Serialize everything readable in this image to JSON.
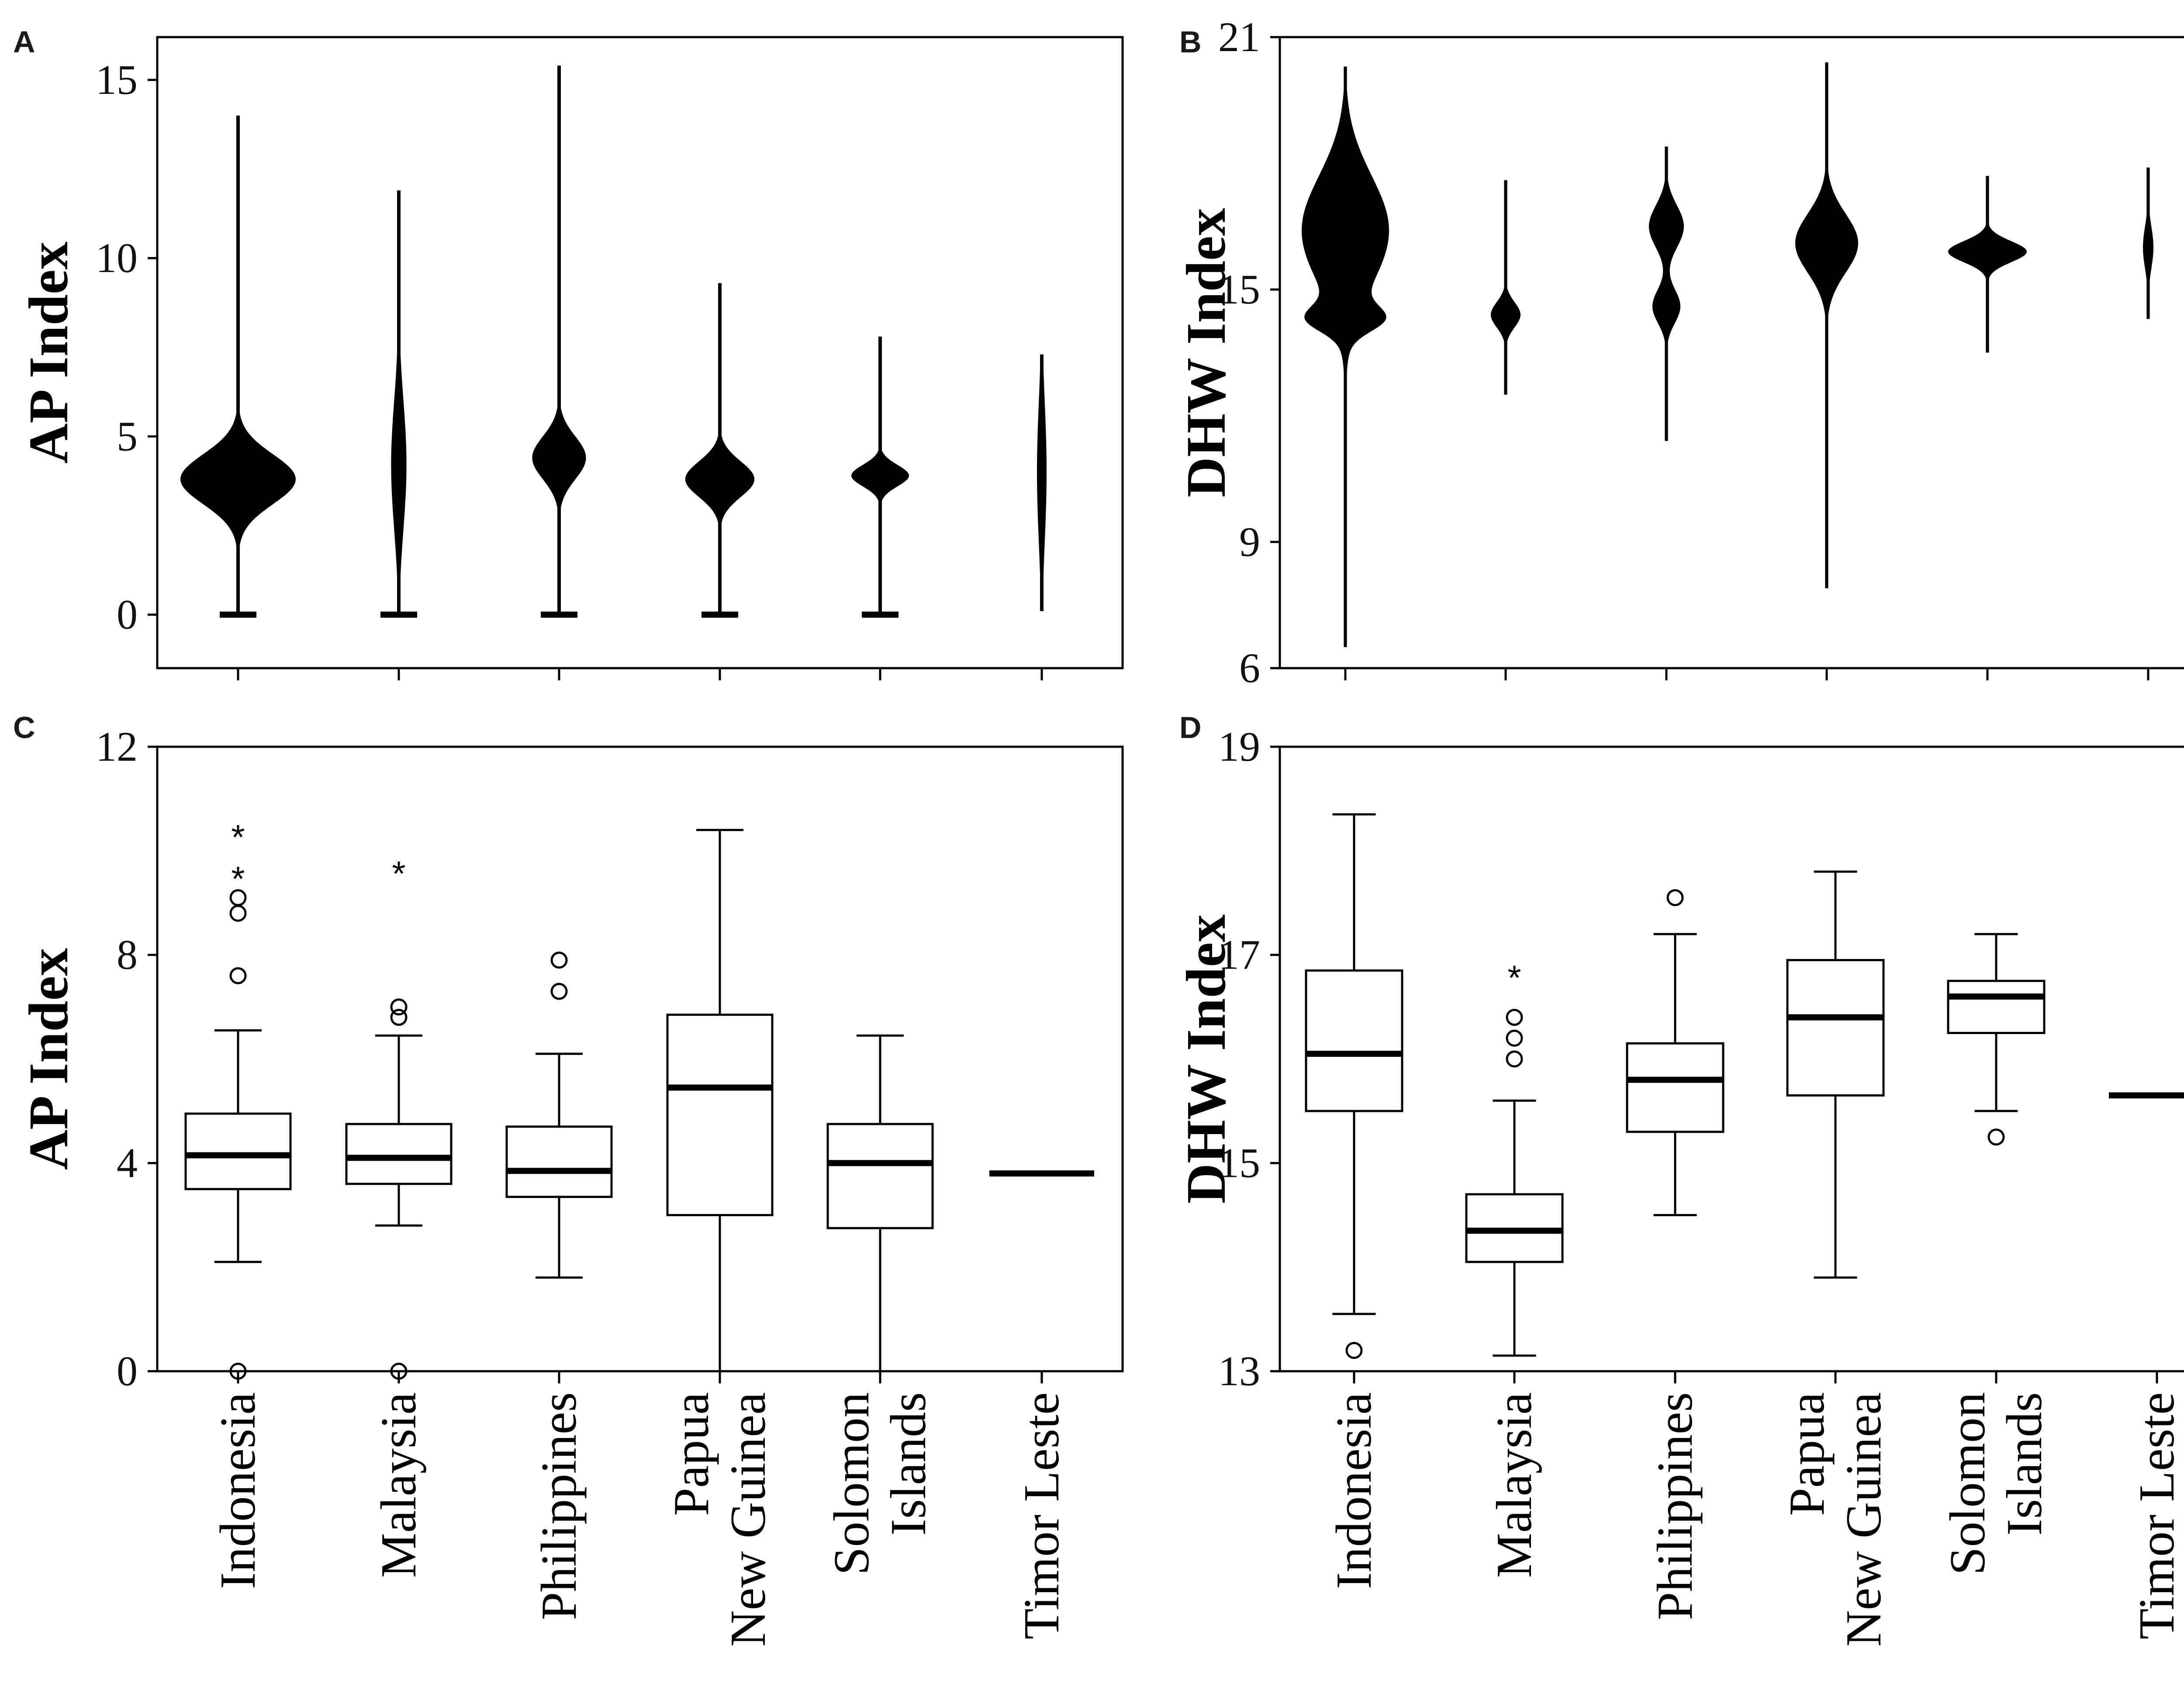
{
  "chart_data": [
    {
      "id": "A",
      "letter": "A",
      "type": "violin",
      "ylabel": "AP Index",
      "ylim": [
        -1.5,
        16.2
      ],
      "yticks": [
        0,
        5,
        10,
        15
      ],
      "ytick_labels": [
        "0",
        "5",
        "10",
        "15"
      ],
      "categories": [
        "Indonesia",
        "Malaysia",
        "Philippines",
        "Papua New Guinea",
        "Solomon Islands",
        "Timor Leste"
      ],
      "groups": [
        {
          "name": "Indonesia",
          "min": 0,
          "max": 14,
          "mode": 3.8,
          "peak_halfwidth": 0.6,
          "spread": 0.7
        },
        {
          "name": "Malaysia",
          "min": 0,
          "max": 11.9,
          "mode": 4.2,
          "peak_halfwidth": 0.08,
          "spread": 1.8
        },
        {
          "name": "Philippines",
          "min": 0,
          "max": 15.4,
          "mode": 4.4,
          "peak_halfwidth": 0.28,
          "spread": 0.6
        },
        {
          "name": "Papua New Guinea",
          "min": 0,
          "max": 9.3,
          "mode": 3.8,
          "peak_halfwidth": 0.36,
          "spread": 0.5
        },
        {
          "name": "Solomon Islands",
          "min": 0,
          "max": 7.8,
          "mode": 3.9,
          "peak_halfwidth": 0.3,
          "spread": 0.3
        },
        {
          "name": "Timor Leste",
          "min": 0.1,
          "max": 7.3,
          "mode": 4.0,
          "peak_halfwidth": 0.05,
          "spread": 2.0
        }
      ]
    },
    {
      "id": "B",
      "letter": "B",
      "type": "violin",
      "ylabel": "DHW Index",
      "ylim": [
        6,
        21
      ],
      "yticks": [
        6,
        9,
        15,
        21
      ],
      "ytick_labels": [
        "6",
        "9",
        "15",
        "21"
      ],
      "categories": [
        "Indonesia",
        "Malaysia",
        "Philippines",
        "Papua New Guinea",
        "Solomon Islands",
        "Timor Leste"
      ],
      "groups": [
        {
          "name": "Indonesia",
          "min": 6.5,
          "max": 20.3,
          "modes": [
            [
              16.4,
              0.5,
              1.3
            ],
            [
              14.3,
              0.33,
              0.3
            ]
          ]
        },
        {
          "name": "Malaysia",
          "min": 12.5,
          "max": 17.6,
          "modes": [
            [
              14.4,
              0.17,
              0.3
            ]
          ]
        },
        {
          "name": "Philippines",
          "min": 11.4,
          "max": 18.4,
          "modes": [
            [
              16.5,
              0.2,
              0.5
            ],
            [
              14.6,
              0.16,
              0.4
            ]
          ]
        },
        {
          "name": "Papua New Guinea",
          "min": 7.9,
          "max": 20.4,
          "modes": [
            [
              16.1,
              0.36,
              0.7
            ]
          ]
        },
        {
          "name": "Solomon Islands",
          "min": 13.5,
          "max": 17.7,
          "modes": [
            [
              15.9,
              0.45,
              0.25
            ]
          ]
        },
        {
          "name": "Timor Leste",
          "min": 14.3,
          "max": 17.9,
          "modes": [
            [
              16.0,
              0.06,
              0.5
            ]
          ]
        }
      ]
    },
    {
      "id": "C",
      "letter": "C",
      "type": "box",
      "ylabel": "AP Index",
      "ylim": [
        0,
        12
      ],
      "yticks": [
        0,
        4,
        8,
        12
      ],
      "ytick_labels": [
        "0",
        "4",
        "8",
        "12"
      ],
      "categories": [
        "Indonesia",
        "Malaysia",
        "Philippines",
        "Papua\nNew Guinea",
        "Solomon\nIslands",
        "Timor Leste"
      ],
      "boxes": [
        {
          "name": "Indonesia",
          "whisker_low": 2.1,
          "q1": 3.5,
          "median": 4.15,
          "q3": 4.95,
          "whisker_high": 6.55,
          "outliers": [
            0,
            7.6,
            8.8,
            9.1
          ],
          "extremes": [
            9.6,
            10.4
          ]
        },
        {
          "name": "Malaysia",
          "whisker_low": 2.8,
          "q1": 3.6,
          "median": 4.1,
          "q3": 4.75,
          "whisker_high": 6.45,
          "outliers": [
            0,
            6.8,
            7.0
          ],
          "extremes": [
            9.7
          ]
        },
        {
          "name": "Philippines",
          "whisker_low": 1.8,
          "q1": 3.35,
          "median": 3.85,
          "q3": 4.7,
          "whisker_high": 6.1,
          "outliers": [
            7.3,
            7.9
          ],
          "extremes": []
        },
        {
          "name": "Papua New Guinea",
          "whisker_low": 0,
          "q1": 3.0,
          "median": 5.45,
          "q3": 6.85,
          "whisker_high": 10.4,
          "outliers": [],
          "extremes": []
        },
        {
          "name": "Solomon Islands",
          "whisker_low": 0,
          "q1": 2.75,
          "median": 4.0,
          "q3": 4.75,
          "whisker_high": 6.45,
          "outliers": [],
          "extremes": []
        },
        {
          "name": "Timor Leste",
          "whisker_low": 3.8,
          "q1": 3.8,
          "median": 3.8,
          "q3": 3.8,
          "whisker_high": 3.8,
          "outliers": [],
          "extremes": []
        }
      ]
    },
    {
      "id": "D",
      "letter": "D",
      "type": "box",
      "ylabel": "DHW Index",
      "ylim": [
        13,
        19
      ],
      "yticks": [
        13,
        15,
        17,
        19
      ],
      "ytick_labels": [
        "13",
        "15",
        "17",
        "19"
      ],
      "categories": [
        "Indonesia",
        "Malaysia",
        "Philippines",
        "Papua\nNew Guinea",
        "Solomon\nIslands",
        "Timor Leste"
      ],
      "boxes": [
        {
          "name": "Indonesia",
          "whisker_low": 13.55,
          "q1": 15.5,
          "median": 16.05,
          "q3": 16.85,
          "whisker_high": 18.35,
          "outliers": [
            13.2
          ],
          "extremes": []
        },
        {
          "name": "Malaysia",
          "whisker_low": 13.15,
          "q1": 14.05,
          "median": 14.35,
          "q3": 14.7,
          "whisker_high": 15.6,
          "outliers": [
            16.0,
            16.2,
            16.4
          ],
          "extremes": [
            16.85
          ]
        },
        {
          "name": "Philippines",
          "whisker_low": 14.5,
          "q1": 15.3,
          "median": 15.8,
          "q3": 16.15,
          "whisker_high": 17.2,
          "outliers": [
            17.55
          ],
          "extremes": []
        },
        {
          "name": "Papua New Guinea",
          "whisker_low": 13.9,
          "q1": 15.65,
          "median": 16.4,
          "q3": 16.95,
          "whisker_high": 17.8,
          "outliers": [],
          "extremes": []
        },
        {
          "name": "Solomon Islands",
          "whisker_low": 15.5,
          "q1": 16.25,
          "median": 16.6,
          "q3": 16.75,
          "whisker_high": 17.2,
          "outliers": [
            15.25
          ],
          "extremes": []
        },
        {
          "name": "Timor Leste",
          "whisker_low": 15.65,
          "q1": 15.65,
          "median": 15.65,
          "q3": 15.65,
          "whisker_high": 15.65,
          "outliers": [],
          "extremes": []
        }
      ]
    }
  ]
}
